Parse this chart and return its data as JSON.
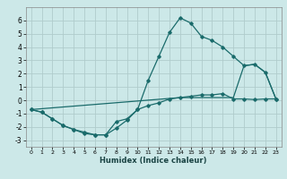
{
  "xlabel": "Humidex (Indice chaleur)",
  "ylabel": "",
  "background_color": "#cce8e8",
  "grid_color": "#b0cccc",
  "line_color": "#1a6b6b",
  "xlim": [
    -0.5,
    23.5
  ],
  "ylim": [
    -3.5,
    7.0
  ],
  "xticks": [
    0,
    1,
    2,
    3,
    4,
    5,
    6,
    7,
    8,
    9,
    10,
    11,
    12,
    13,
    14,
    15,
    16,
    17,
    18,
    19,
    20,
    21,
    22,
    23
  ],
  "yticks": [
    -3,
    -2,
    -1,
    0,
    1,
    2,
    3,
    4,
    5,
    6
  ],
  "line1_x": [
    0,
    1,
    2,
    3,
    4,
    5,
    6,
    7,
    8,
    9,
    10,
    11,
    12,
    13,
    14,
    15,
    16,
    17,
    18,
    19,
    20,
    21,
    22,
    23
  ],
  "line1_y": [
    -0.7,
    -0.9,
    -1.4,
    -1.9,
    -2.2,
    -2.5,
    -2.6,
    -2.6,
    -2.1,
    -1.5,
    -0.7,
    1.5,
    3.3,
    5.1,
    6.2,
    5.8,
    4.8,
    4.5,
    4.0,
    3.3,
    2.6,
    2.7,
    2.1,
    0.1
  ],
  "line2_x": [
    0,
    1,
    2,
    3,
    4,
    5,
    6,
    7,
    8,
    9,
    10,
    11,
    12,
    13,
    14,
    15,
    16,
    17,
    18,
    19,
    20,
    21,
    22,
    23
  ],
  "line2_y": [
    -0.7,
    -0.9,
    -1.4,
    -1.9,
    -2.2,
    -2.4,
    -2.6,
    -2.6,
    -1.6,
    -1.4,
    -0.7,
    -0.4,
    -0.2,
    0.1,
    0.2,
    0.3,
    0.4,
    0.4,
    0.5,
    0.1,
    0.1,
    0.05,
    0.1,
    0.1
  ],
  "line3_x": [
    0,
    14,
    19,
    20,
    21,
    22,
    23
  ],
  "line3_y": [
    -0.7,
    0.2,
    0.2,
    2.6,
    2.7,
    2.1,
    0.1
  ]
}
